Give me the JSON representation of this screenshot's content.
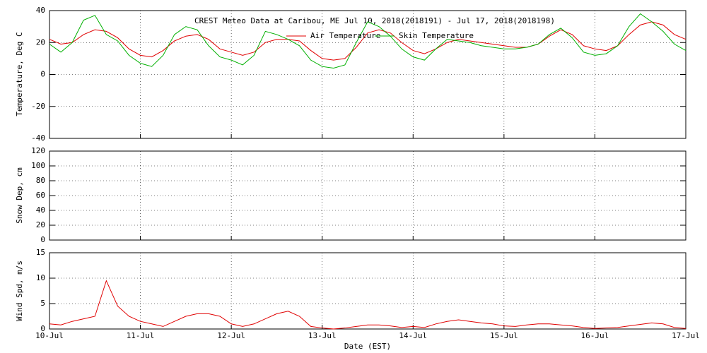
{
  "chart_data": [
    {
      "type": "line",
      "title": "CREST Meteo Data at Caribou, ME   Jul 10, 2018(2018191) - Jul 17, 2018(2018198)",
      "y_label": "Temperature, Deg C",
      "x": [
        0,
        0.125,
        0.25,
        0.375,
        0.5,
        0.625,
        0.75,
        0.875,
        1,
        1.125,
        1.25,
        1.375,
        1.5,
        1.625,
        1.75,
        1.875,
        2,
        2.125,
        2.25,
        2.375,
        2.5,
        2.625,
        2.75,
        2.875,
        3,
        3.125,
        3.25,
        3.375,
        3.5,
        3.625,
        3.75,
        3.875,
        4,
        4.125,
        4.25,
        4.375,
        4.5,
        4.625,
        4.75,
        4.875,
        5,
        5.125,
        5.25,
        5.375,
        5.5,
        5.625,
        5.75,
        5.875,
        6,
        6.125,
        6.25,
        6.375,
        6.5,
        6.625,
        6.75,
        6.875,
        7
      ],
      "xlim": [
        0,
        7
      ],
      "xticks": [
        0,
        1,
        2,
        3,
        4,
        5,
        6,
        7
      ],
      "ylim": [
        -40,
        40
      ],
      "yticks": [
        -40,
        -20,
        0,
        20,
        40
      ],
      "grid": true,
      "legend": "top",
      "series": [
        {
          "name": "Air Temperature",
          "color": "#e00000",
          "values": [
            22,
            19,
            20,
            25,
            28,
            27,
            23,
            16,
            12,
            11,
            15,
            21,
            24,
            25,
            22,
            16,
            14,
            12,
            14,
            20,
            22,
            22,
            21,
            15,
            10,
            9,
            10,
            17,
            26,
            28,
            26,
            20,
            15,
            13,
            16,
            20,
            22,
            21,
            20,
            19,
            18,
            17,
            17,
            19,
            24,
            28,
            25,
            18,
            16,
            15,
            18,
            25,
            31,
            33,
            31,
            25,
            22
          ]
        },
        {
          "name": "Skin Temperature",
          "color": "#00b000",
          "values": [
            19,
            14,
            20,
            34,
            37,
            25,
            21,
            12,
            7,
            5,
            12,
            25,
            30,
            28,
            18,
            11,
            9,
            6,
            12,
            27,
            25,
            22,
            18,
            9,
            5,
            4,
            6,
            20,
            33,
            30,
            24,
            16,
            11,
            9,
            16,
            22,
            21,
            20,
            18,
            17,
            16,
            16,
            17,
            19,
            25,
            29,
            23,
            14,
            12,
            13,
            18,
            30,
            38,
            33,
            27,
            19,
            15
          ]
        }
      ]
    },
    {
      "type": "line",
      "y_label": "Snow Dep, cm",
      "x": [
        0,
        0.125,
        0.25,
        0.375,
        0.5,
        0.625,
        0.75,
        0.875,
        1,
        1.125,
        1.25,
        1.375,
        1.5,
        1.625,
        1.75,
        1.875,
        2,
        2.125,
        2.25,
        2.375,
        2.5,
        2.625,
        2.75,
        2.875,
        3,
        3.125,
        3.25,
        3.375,
        3.5,
        3.625,
        3.75,
        3.875,
        4,
        4.125,
        4.25,
        4.375,
        4.5,
        4.625,
        4.75,
        4.875,
        5,
        5.125,
        5.25,
        5.375,
        5.5,
        5.625,
        5.75,
        5.875,
        6,
        6.125,
        6.25,
        6.375,
        6.5,
        6.625,
        6.75,
        6.875,
        7
      ],
      "xlim": [
        0,
        7
      ],
      "xticks": [
        0,
        1,
        2,
        3,
        4,
        5,
        6,
        7
      ],
      "ylim": [
        0,
        120
      ],
      "yticks": [
        0,
        20,
        40,
        60,
        80,
        100,
        120
      ],
      "grid": true,
      "series": []
    },
    {
      "type": "line",
      "y_label": "Wind Spd, m/s",
      "x_label": "Date (EST)",
      "x": [
        0,
        0.125,
        0.25,
        0.375,
        0.5,
        0.625,
        0.75,
        0.875,
        1,
        1.125,
        1.25,
        1.375,
        1.5,
        1.625,
        1.75,
        1.875,
        2,
        2.125,
        2.25,
        2.375,
        2.5,
        2.625,
        2.75,
        2.875,
        3,
        3.125,
        3.25,
        3.375,
        3.5,
        3.625,
        3.75,
        3.875,
        4,
        4.125,
        4.25,
        4.375,
        4.5,
        4.625,
        4.75,
        4.875,
        5,
        5.125,
        5.25,
        5.375,
        5.5,
        5.625,
        5.75,
        5.875,
        6,
        6.125,
        6.25,
        6.375,
        6.5,
        6.625,
        6.75,
        6.875,
        7
      ],
      "xlim": [
        0,
        7
      ],
      "xticks": [
        {
          "value": 0,
          "label": "10-Jul"
        },
        {
          "value": 1,
          "label": "11-Jul"
        },
        {
          "value": 2,
          "label": "12-Jul"
        },
        {
          "value": 3,
          "label": "13-Jul"
        },
        {
          "value": 4,
          "label": "14-Jul"
        },
        {
          "value": 5,
          "label": "15-Jul"
        },
        {
          "value": 6,
          "label": "16-Jul"
        },
        {
          "value": 7,
          "label": "17-Jul"
        }
      ],
      "ylim": [
        0,
        15
      ],
      "yticks": [
        0,
        5,
        10,
        15
      ],
      "grid": true,
      "series": [
        {
          "name": "Wind Speed",
          "color": "#e00000",
          "values": [
            1,
            0.8,
            1.5,
            2,
            2.5,
            9.5,
            4.5,
            2.5,
            1.5,
            1,
            0.5,
            1.5,
            2.5,
            3,
            3,
            2.5,
            1,
            0.5,
            1,
            2,
            3,
            3.5,
            2.5,
            0.5,
            0.2,
            0,
            0.2,
            0.5,
            0.8,
            0.8,
            0.6,
            0.3,
            0.5,
            0.3,
            1,
            1.5,
            1.8,
            1.5,
            1.2,
            1,
            0.6,
            0.5,
            0.8,
            1,
            1,
            0.8,
            0.6,
            0.3,
            0.1,
            0.2,
            0.3,
            0.6,
            0.9,
            1.2,
            1,
            0.3,
            0.1
          ]
        }
      ]
    }
  ]
}
